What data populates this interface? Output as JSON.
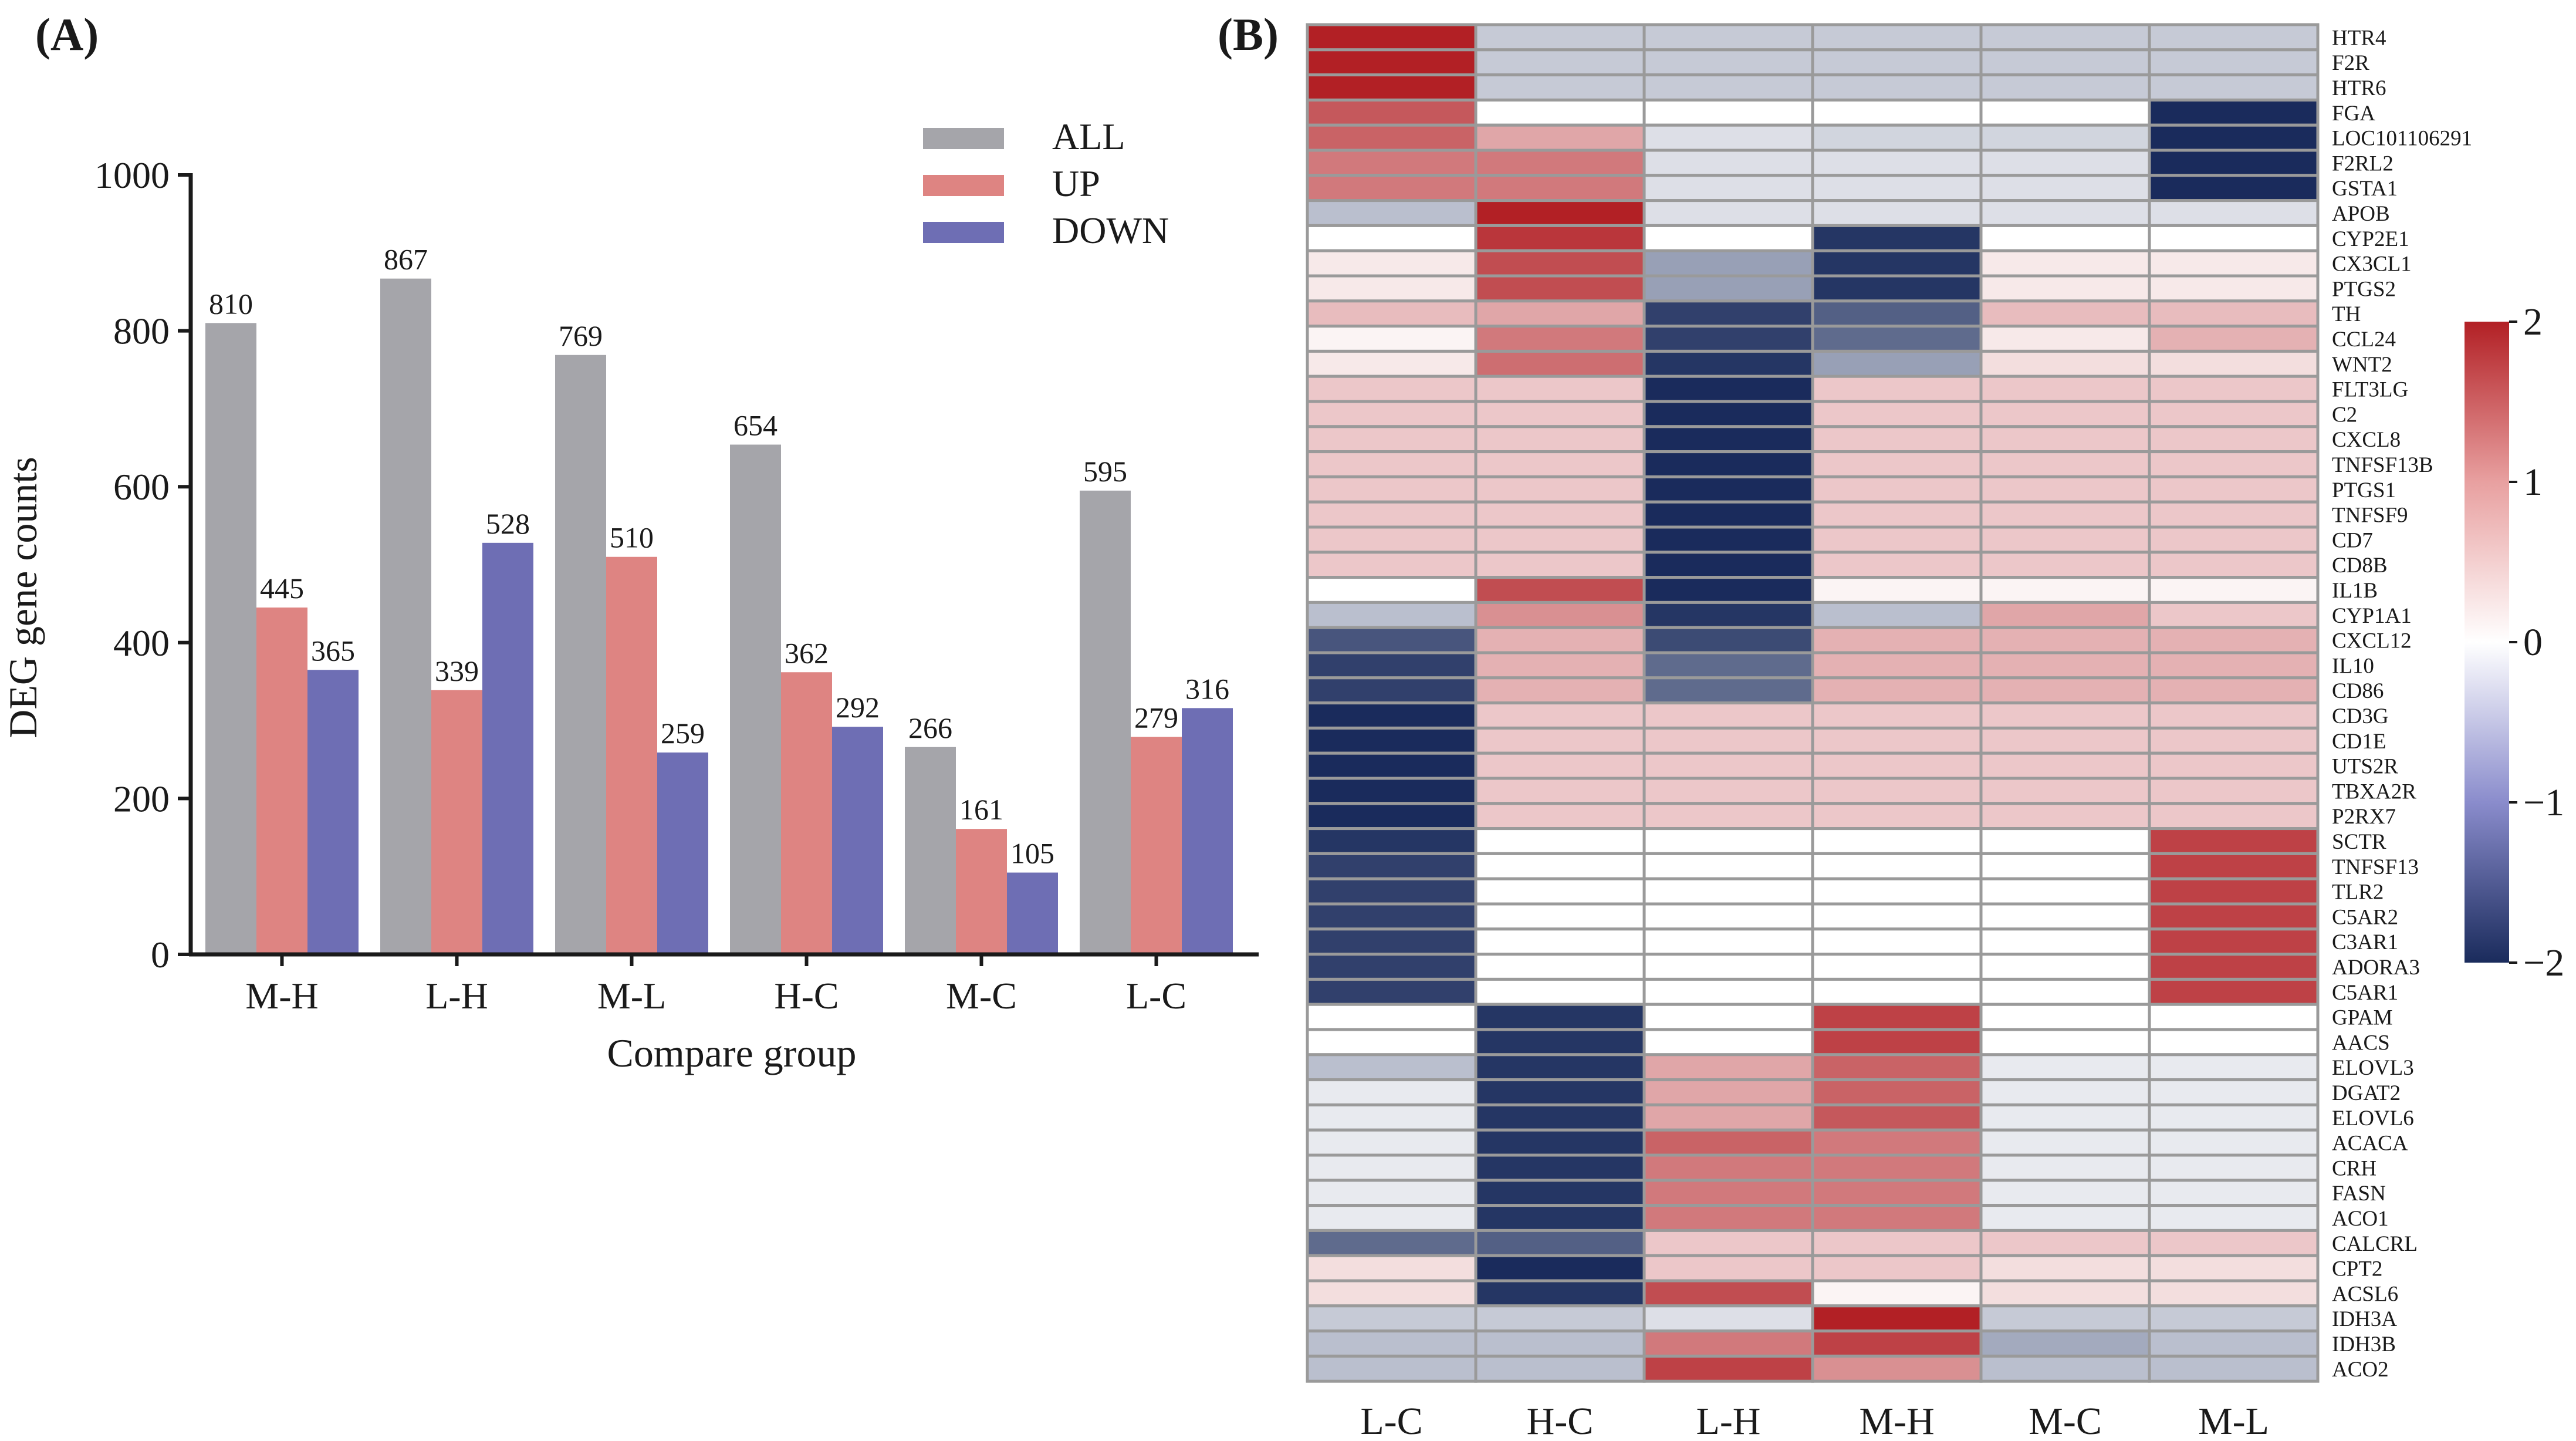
{
  "figure": {
    "panel_a_label": "(A)",
    "panel_b_label": "(B)"
  },
  "colors": {
    "all": "#a5a5aa",
    "up": "#de8482",
    "down": "#6e6eb4",
    "heat_high": "#b22025",
    "heat_mid": "#ffffff",
    "heat_low": "#1a2b5c",
    "cell_border": "#9a9a9a"
  },
  "chart_data": [
    {
      "type": "bar",
      "title": "",
      "xlabel": "Compare group",
      "ylabel": "DEG gene counts",
      "ylim": [
        0,
        1000
      ],
      "yticks": [
        0,
        200,
        400,
        600,
        800,
        1000
      ],
      "grid": false,
      "legend_position": "top-right",
      "categories": [
        "M-H",
        "L-H",
        "M-L",
        "H-C",
        "M-C",
        "L-C"
      ],
      "series": [
        {
          "name": "ALL",
          "values": [
            810,
            867,
            769,
            654,
            266,
            595
          ]
        },
        {
          "name": "UP",
          "values": [
            445,
            339,
            510,
            362,
            161,
            279
          ]
        },
        {
          "name": "DOWN",
          "values": [
            365,
            528,
            259,
            292,
            105,
            316
          ]
        }
      ]
    },
    {
      "type": "heatmap",
      "title": "",
      "columns": [
        "L-C",
        "H-C",
        "L-H",
        "M-H",
        "M-C",
        "M-L"
      ],
      "colorbar": {
        "min": -2,
        "max": 2,
        "ticks": [
          2,
          1,
          0,
          -1,
          -2
        ],
        "tick_labels": [
          "2",
          "1",
          "0",
          "−1",
          "−2"
        ]
      },
      "rows": [
        {
          "gene": "HTR4",
          "values": [
            2,
            -0.5,
            -0.5,
            -0.5,
            -0.5,
            -0.5
          ]
        },
        {
          "gene": "F2R",
          "values": [
            2,
            -0.5,
            -0.5,
            -0.5,
            -0.5,
            -0.5
          ]
        },
        {
          "gene": "HTR6",
          "values": [
            2,
            -0.5,
            -0.5,
            -0.5,
            -0.5,
            -0.5
          ]
        },
        {
          "gene": "FGA",
          "values": [
            1.5,
            0,
            0,
            0,
            0,
            -2
          ]
        },
        {
          "gene": "LOC101106291",
          "values": [
            1.4,
            0.8,
            -0.3,
            -0.4,
            -0.4,
            -2
          ]
        },
        {
          "gene": "F2RL2",
          "values": [
            1.2,
            1.2,
            -0.3,
            -0.3,
            -0.3,
            -2
          ]
        },
        {
          "gene": "GSTA1",
          "values": [
            1.2,
            1.2,
            -0.3,
            -0.3,
            -0.3,
            -2
          ]
        },
        {
          "gene": "APOB",
          "values": [
            -0.6,
            2,
            -0.3,
            -0.3,
            -0.3,
            -0.3
          ]
        },
        {
          "gene": "CYP2E1",
          "values": [
            0,
            1.8,
            0,
            -1.9,
            0,
            0
          ]
        },
        {
          "gene": "CX3CL1",
          "values": [
            0.2,
            1.6,
            -0.9,
            -1.9,
            0.2,
            0.2
          ]
        },
        {
          "gene": "PTGS2",
          "values": [
            0.2,
            1.6,
            -0.9,
            -1.9,
            0.2,
            0.2
          ]
        },
        {
          "gene": "TH",
          "values": [
            0.6,
            0.8,
            -1.8,
            -1.5,
            0.6,
            0.6
          ]
        },
        {
          "gene": "CCL24",
          "values": [
            0.1,
            1.2,
            -1.8,
            -1.4,
            0.2,
            0.7
          ]
        },
        {
          "gene": "WNT2",
          "values": [
            0.2,
            1.3,
            -1.9,
            -0.9,
            0.3,
            0.3
          ]
        },
        {
          "gene": "FLT3LG",
          "values": [
            0.5,
            0.5,
            -2,
            0.5,
            0.5,
            0.5
          ]
        },
        {
          "gene": "C2",
          "values": [
            0.5,
            0.5,
            -2,
            0.5,
            0.5,
            0.5
          ]
        },
        {
          "gene": "CXCL8",
          "values": [
            0.5,
            0.5,
            -2,
            0.5,
            0.5,
            0.5
          ]
        },
        {
          "gene": "TNFSF13B",
          "values": [
            0.5,
            0.5,
            -2,
            0.5,
            0.5,
            0.5
          ]
        },
        {
          "gene": "PTGS1",
          "values": [
            0.5,
            0.5,
            -2,
            0.5,
            0.5,
            0.5
          ]
        },
        {
          "gene": "TNFSF9",
          "values": [
            0.5,
            0.5,
            -2,
            0.5,
            0.5,
            0.5
          ]
        },
        {
          "gene": "CD7",
          "values": [
            0.5,
            0.5,
            -2,
            0.5,
            0.5,
            0.5
          ]
        },
        {
          "gene": "CD8B",
          "values": [
            0.5,
            0.5,
            -2,
            0.5,
            0.5,
            0.5
          ]
        },
        {
          "gene": "IL1B",
          "values": [
            0,
            1.6,
            -2,
            0.1,
            0.1,
            0.1
          ]
        },
        {
          "gene": "CYP1A1",
          "values": [
            -0.6,
            1.0,
            -1.9,
            -0.6,
            0.8,
            0.5
          ]
        },
        {
          "gene": "CXCL12",
          "values": [
            -1.6,
            0.7,
            -1.7,
            0.7,
            0.7,
            0.7
          ]
        },
        {
          "gene": "IL10",
          "values": [
            -1.8,
            0.7,
            -1.4,
            0.7,
            0.7,
            0.7
          ]
        },
        {
          "gene": "CD86",
          "values": [
            -1.8,
            0.7,
            -1.4,
            0.7,
            0.7,
            0.7
          ]
        },
        {
          "gene": "CD3G",
          "values": [
            -2,
            0.5,
            0.5,
            0.5,
            0.5,
            0.5
          ]
        },
        {
          "gene": "CD1E",
          "values": [
            -2,
            0.5,
            0.5,
            0.5,
            0.5,
            0.5
          ]
        },
        {
          "gene": "UTS2R",
          "values": [
            -2,
            0.5,
            0.5,
            0.5,
            0.5,
            0.5
          ]
        },
        {
          "gene": "TBXA2R",
          "values": [
            -2,
            0.5,
            0.5,
            0.5,
            0.5,
            0.5
          ]
        },
        {
          "gene": "P2RX7",
          "values": [
            -2,
            0.5,
            0.5,
            0.5,
            0.5,
            0.5
          ]
        },
        {
          "gene": "SCTR",
          "values": [
            -1.9,
            0,
            0,
            0,
            0,
            1.7
          ]
        },
        {
          "gene": "TNFSF13",
          "values": [
            -1.8,
            0,
            0,
            0,
            0,
            1.7
          ]
        },
        {
          "gene": "TLR2",
          "values": [
            -1.8,
            0,
            0,
            0,
            0,
            1.7
          ]
        },
        {
          "gene": "C5AR2",
          "values": [
            -1.8,
            0,
            0,
            0,
            0,
            1.7
          ]
        },
        {
          "gene": "C3AR1",
          "values": [
            -1.8,
            0,
            0,
            0,
            0,
            1.7
          ]
        },
        {
          "gene": "ADORA3",
          "values": [
            -1.8,
            0,
            0,
            0,
            0,
            1.7
          ]
        },
        {
          "gene": "C5AR1",
          "values": [
            -1.8,
            0,
            0,
            0,
            0,
            1.7
          ]
        },
        {
          "gene": "GPAM",
          "values": [
            0,
            -1.9,
            0,
            1.7,
            0,
            0
          ]
        },
        {
          "gene": "AACS",
          "values": [
            0,
            -1.9,
            0,
            1.7,
            0,
            0
          ]
        },
        {
          "gene": "ELOVL3",
          "values": [
            -0.6,
            -1.9,
            0.8,
            1.4,
            -0.2,
            -0.2
          ]
        },
        {
          "gene": "DGAT2",
          "values": [
            -0.2,
            -1.9,
            0.8,
            1.4,
            -0.2,
            -0.2
          ]
        },
        {
          "gene": "ELOVL6",
          "values": [
            -0.2,
            -1.9,
            0.8,
            1.5,
            -0.2,
            -0.2
          ]
        },
        {
          "gene": "ACACA",
          "values": [
            -0.2,
            -1.9,
            1.4,
            1.2,
            -0.2,
            -0.2
          ]
        },
        {
          "gene": "CRH",
          "values": [
            -0.2,
            -1.9,
            1.2,
            1.2,
            -0.2,
            -0.2
          ]
        },
        {
          "gene": "FASN",
          "values": [
            -0.2,
            -1.9,
            1.2,
            1.2,
            -0.2,
            -0.2
          ]
        },
        {
          "gene": "ACO1",
          "values": [
            -0.2,
            -1.9,
            1.2,
            1.2,
            -0.2,
            -0.2
          ]
        },
        {
          "gene": "CALCRL",
          "values": [
            -1.4,
            -1.5,
            0.5,
            0.5,
            0.5,
            0.5
          ]
        },
        {
          "gene": "CPT2",
          "values": [
            0.3,
            -2,
            0.5,
            0.5,
            0.3,
            0.3
          ]
        },
        {
          "gene": "ACSL6",
          "values": [
            0.3,
            -1.9,
            1.6,
            0.1,
            0.3,
            0.3
          ]
        },
        {
          "gene": "IDH3A",
          "values": [
            -0.5,
            -0.5,
            -0.3,
            2,
            -0.5,
            -0.5
          ]
        },
        {
          "gene": "IDH3B",
          "values": [
            -0.6,
            -0.6,
            1.2,
            1.7,
            -0.8,
            -0.6
          ]
        },
        {
          "gene": "ACO2",
          "values": [
            -0.6,
            -0.6,
            1.7,
            1.0,
            -0.6,
            -0.6
          ]
        }
      ]
    }
  ]
}
